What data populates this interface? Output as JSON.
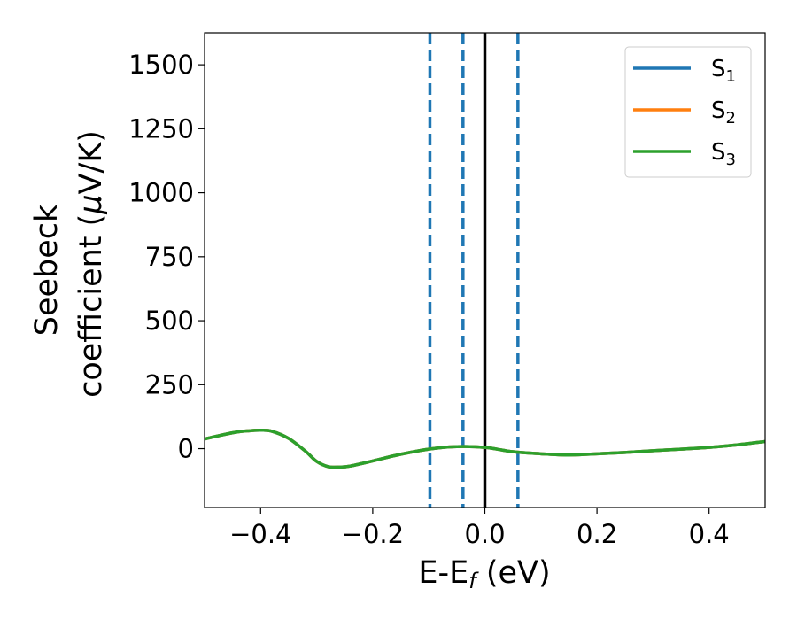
{
  "chart_data": {
    "type": "line",
    "title": "",
    "xlabel": "E-E$_f$ (eV)",
    "xlabel_parts": {
      "main": "E-E",
      "sub": "f",
      "rest": " (eV)"
    },
    "ylabel_line1": "Seebeck",
    "ylabel_line2_main": "coefficient  (",
    "ylabel_line2_mu": "μ",
    "ylabel_line2_rest": "V/K)",
    "xlim": [
      -0.5,
      0.5
    ],
    "ylim": [
      -230,
      1625
    ],
    "xticks": [
      -0.4,
      -0.2,
      0.0,
      0.2,
      0.4
    ],
    "xtick_labels": [
      "−0.4",
      "−0.2",
      "0.0",
      "0.2",
      "0.4"
    ],
    "yticks": [
      0,
      250,
      500,
      750,
      1000,
      1250,
      1500
    ],
    "ytick_labels": [
      "0",
      "250",
      "500",
      "750",
      "1000",
      "1250",
      "1500"
    ],
    "grid": false,
    "legend_position": "top-right",
    "reference_lines": {
      "solid": {
        "x": 0.0,
        "color": "#000000"
      },
      "dashed": {
        "x": [
          -0.098,
          -0.039,
          0.059
        ],
        "color": "#1f77b4"
      }
    },
    "x": [
      -0.5,
      -0.45,
      -0.42,
      -0.4,
      -0.38,
      -0.35,
      -0.32,
      -0.3,
      -0.28,
      -0.26,
      -0.24,
      -0.2,
      -0.15,
      -0.1,
      -0.05,
      0.0,
      0.05,
      0.1,
      0.15,
      0.2,
      0.25,
      0.3,
      0.35,
      0.4,
      0.45,
      0.5
    ],
    "series": [
      {
        "name": "S",
        "sub": "1",
        "color": "#1f77b4",
        "values": [
          38,
          62,
          70,
          72,
          68,
          40,
          -10,
          -50,
          -70,
          -72,
          -68,
          -48,
          -22,
          -2,
          8,
          5,
          -12,
          -20,
          -25,
          -20,
          -15,
          -8,
          -2,
          5,
          15,
          28
        ]
      },
      {
        "name": "S",
        "sub": "2",
        "color": "#ff7f0e",
        "values": [
          38,
          62,
          70,
          72,
          68,
          40,
          -10,
          -50,
          -70,
          -72,
          -68,
          -48,
          -22,
          -2,
          8,
          5,
          -12,
          -20,
          -25,
          -20,
          -15,
          -8,
          -2,
          5,
          15,
          28
        ]
      },
      {
        "name": "S",
        "sub": "3",
        "color": "#2ca02c",
        "values": [
          38,
          62,
          70,
          72,
          68,
          40,
          -10,
          -50,
          -70,
          -72,
          -68,
          -48,
          -22,
          -2,
          8,
          5,
          -12,
          -20,
          -25,
          -20,
          -15,
          -8,
          -2,
          5,
          15,
          28
        ]
      }
    ]
  }
}
